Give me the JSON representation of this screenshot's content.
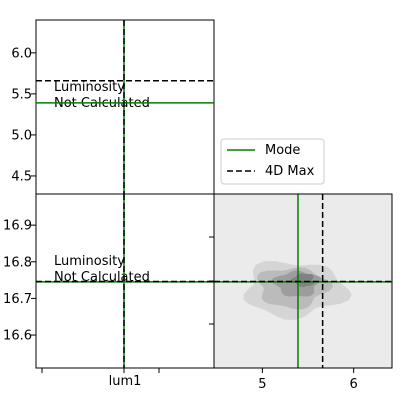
{
  "chart_data": [
    {
      "type": "line",
      "panel": "top-left",
      "annotation_line1": "Luminosity",
      "annotation_line2": "Not Calculated",
      "ylim": [
        4.28,
        6.4
      ],
      "y_ticks": [
        4.5,
        5.0,
        5.5,
        6.0
      ],
      "y_tick_labels": [
        "4.5",
        "5.0",
        "5.5",
        "6.0"
      ],
      "x_value_vline": "lum1",
      "mode_y": 5.39,
      "max4d_y": 5.66
    },
    {
      "type": "line",
      "panel": "bottom-left",
      "annotation_line1": "Luminosity",
      "annotation_line2": "Not Calculated",
      "ylim": [
        16.51,
        16.985
      ],
      "y_ticks": [
        16.6,
        16.7,
        16.8,
        16.9
      ],
      "y_tick_labels": [
        "16.6",
        "16.7",
        "16.8",
        "16.9"
      ],
      "x_tick_label": "lum1",
      "mode_y": 16.745,
      "max4d_y": 16.746
    },
    {
      "type": "heatmap",
      "panel": "bottom-right",
      "xlim": [
        4.47,
        6.42
      ],
      "ylim": [
        16.51,
        16.985
      ],
      "x_ticks": [
        5,
        6
      ],
      "x_tick_labels": [
        "5",
        "6"
      ],
      "mode": {
        "x": 5.39,
        "y": 16.745
      },
      "max4d": {
        "x": 5.66,
        "y": 16.746
      },
      "density_levels": [
        {
          "level": 1,
          "cx": 5.35,
          "cy": 16.725,
          "rx": 0.55,
          "ry": 0.075,
          "color": "#d3d3d3"
        },
        {
          "level": 2,
          "cx": 5.33,
          "cy": 16.73,
          "rx": 0.38,
          "ry": 0.055,
          "color": "#b8b8b8"
        },
        {
          "level": 3,
          "cx": 5.38,
          "cy": 16.74,
          "rx": 0.24,
          "ry": 0.035,
          "color": "#9a9a9a"
        },
        {
          "level": 4,
          "cx": 5.45,
          "cy": 16.75,
          "rx": 0.12,
          "ry": 0.018,
          "color": "#7f7f7f"
        }
      ]
    }
  ],
  "legend": {
    "entries": [
      {
        "label": "Mode",
        "color": "#008000",
        "style": "solid"
      },
      {
        "label": "4D Max",
        "color": "#000000",
        "style": "dashed"
      }
    ],
    "placement": "right-of-top-left-panel"
  },
  "colors": {
    "mode": "#008000",
    "max4d": "#000000",
    "hist_bg": "#ebebeb"
  }
}
